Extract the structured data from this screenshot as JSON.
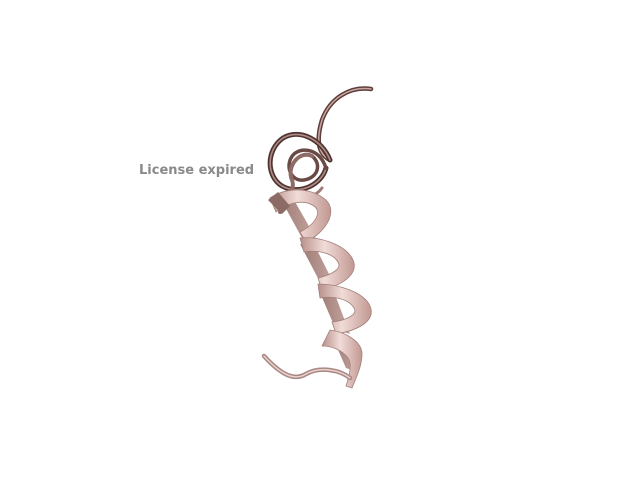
{
  "overlay": {
    "license_text": "License expired"
  },
  "molecule": {
    "representation": "cartoon-ribbon",
    "secondary_structure": "alpha-helix",
    "colors": {
      "ribbon_light": "#e3c3bd",
      "ribbon_mid": "#c99e97",
      "ribbon_dark": "#6e4a45",
      "highlight": "#f6e8e5",
      "background": "#ffffff"
    }
  }
}
